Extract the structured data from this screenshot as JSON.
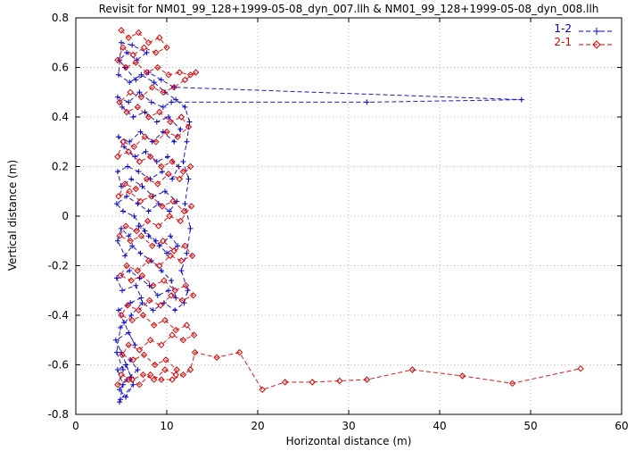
{
  "chart_data": {
    "type": "line",
    "title": "Revisit for NM01_99_128+1999-05-08_dyn_007.llh & NM01_99_128+1999-05-08_dyn_008.llh",
    "xlabel": "Horizontal distance (m)",
    "ylabel": "Vertical distance (m)",
    "xlim": [
      0,
      60
    ],
    "ylim": [
      -0.8,
      0.8
    ],
    "xticks": [
      0,
      10,
      20,
      30,
      40,
      50,
      60
    ],
    "yticks": [
      -0.8,
      -0.6,
      -0.4,
      -0.2,
      0,
      0.2,
      0.4,
      0.6,
      0.8
    ],
    "grid": true,
    "legend_position": "top-right",
    "background": "#ffffff",
    "grid_color": "#b8b8b8",
    "axis_color": "#000000",
    "series": [
      {
        "name": "1-2",
        "color": "#0000cc",
        "marker": "plus",
        "line": "dashed",
        "points": [
          [
            4.8,
            -0.75
          ],
          [
            5.2,
            -0.68
          ],
          [
            4.6,
            -0.62
          ],
          [
            5.5,
            -0.6
          ],
          [
            6.1,
            -0.65
          ],
          [
            5,
            -0.55
          ],
          [
            4.4,
            -0.5
          ],
          [
            5.8,
            -0.47
          ],
          [
            6.5,
            -0.52
          ],
          [
            5.3,
            -0.43
          ],
          [
            4.7,
            -0.38
          ],
          [
            6,
            -0.35
          ],
          [
            7.2,
            -0.33
          ],
          [
            6.6,
            -0.28
          ],
          [
            5.1,
            -0.3
          ],
          [
            4.5,
            -0.25
          ],
          [
            5.9,
            -0.22
          ],
          [
            7,
            -0.25
          ],
          [
            8.1,
            -0.28
          ],
          [
            9,
            -0.32
          ],
          [
            10.2,
            -0.3
          ],
          [
            11,
            -0.33
          ],
          [
            10.5,
            -0.26
          ],
          [
            9.4,
            -0.22
          ],
          [
            8.3,
            -0.18
          ],
          [
            7.1,
            -0.15
          ],
          [
            6.2,
            -0.12
          ],
          [
            5.4,
            -0.16
          ],
          [
            4.6,
            -0.1
          ],
          [
            5,
            -0.05
          ],
          [
            5.8,
            -0.08
          ],
          [
            6.9,
            -0.04
          ],
          [
            8,
            -0.08
          ],
          [
            9.2,
            -0.12
          ],
          [
            10.4,
            -0.08
          ],
          [
            11.2,
            -0.12
          ],
          [
            10,
            -0.15
          ],
          [
            8.8,
            -0.1
          ],
          [
            7.6,
            -0.06
          ],
          [
            6.4,
            0
          ],
          [
            5.2,
            0.02
          ],
          [
            4.5,
            0.05
          ],
          [
            5.6,
            0.08
          ],
          [
            6.8,
            0.05
          ],
          [
            8,
            0.02
          ],
          [
            9.1,
            0.05
          ],
          [
            10.3,
            0.02
          ],
          [
            11.1,
            0.06
          ],
          [
            9.8,
            0.1
          ],
          [
            8.5,
            0.08
          ],
          [
            7.3,
            0.12
          ],
          [
            6.1,
            0.15
          ],
          [
            5,
            0.12
          ],
          [
            4.6,
            0.18
          ],
          [
            5.7,
            0.2
          ],
          [
            6.9,
            0.18
          ],
          [
            8.2,
            0.15
          ],
          [
            9.5,
            0.18
          ],
          [
            10.6,
            0.15
          ],
          [
            11.3,
            0.2
          ],
          [
            10.1,
            0.24
          ],
          [
            8.9,
            0.22
          ],
          [
            7.7,
            0.26
          ],
          [
            6.5,
            0.24
          ],
          [
            5.3,
            0.28
          ],
          [
            4.7,
            0.32
          ],
          [
            5.9,
            0.3
          ],
          [
            7.1,
            0.34
          ],
          [
            8.4,
            0.3
          ],
          [
            9.6,
            0.34
          ],
          [
            10.8,
            0.3
          ],
          [
            11.5,
            0.35
          ],
          [
            10.2,
            0.4
          ],
          [
            8.9,
            0.38
          ],
          [
            7.6,
            0.42
          ],
          [
            6.3,
            0.4
          ],
          [
            5.1,
            0.44
          ],
          [
            4.6,
            0.48
          ],
          [
            5.8,
            0.46
          ],
          [
            7,
            0.5
          ],
          [
            8.3,
            0.46
          ],
          [
            9.6,
            0.44
          ],
          [
            10.5,
            0.46
          ],
          [
            32,
            0.46
          ],
          [
            49,
            0.47
          ],
          [
            10.8,
            0.52
          ],
          [
            9.4,
            0.55
          ],
          [
            8,
            0.58
          ],
          [
            6.6,
            0.55
          ],
          [
            5.4,
            0.6
          ],
          [
            4.8,
            0.63
          ],
          [
            5.6,
            0.66
          ],
          [
            6.7,
            0.63
          ],
          [
            7.8,
            0.66
          ],
          [
            6.2,
            0.69
          ],
          [
            5,
            0.7
          ],
          [
            4.7,
            0.57
          ],
          [
            5.9,
            0.54
          ],
          [
            7.2,
            0.57
          ],
          [
            8.6,
            0.54
          ],
          [
            9.8,
            0.5
          ],
          [
            11,
            0.47
          ],
          [
            12,
            0.44
          ],
          [
            12.5,
            0.38
          ],
          [
            12.2,
            0.3
          ],
          [
            11.8,
            0.22
          ],
          [
            12.4,
            0.15
          ],
          [
            12,
            0.05
          ],
          [
            12.6,
            -0.05
          ],
          [
            12.2,
            -0.15
          ],
          [
            11.6,
            -0.22
          ],
          [
            12.3,
            -0.3
          ],
          [
            11.9,
            -0.35
          ],
          [
            10.9,
            -0.38
          ],
          [
            9.7,
            -0.35
          ],
          [
            8.5,
            -0.38
          ],
          [
            7.3,
            -0.35
          ],
          [
            6.1,
            -0.4
          ],
          [
            4.9,
            -0.45
          ],
          [
            4.5,
            -0.55
          ],
          [
            5.2,
            -0.62
          ],
          [
            6,
            -0.58
          ],
          [
            6.8,
            -0.62
          ],
          [
            5.6,
            -0.66
          ],
          [
            4.8,
            -0.7
          ],
          [
            5.5,
            -0.73
          ],
          [
            6.3,
            -0.68
          ],
          [
            4.9,
            -0.74
          ]
        ]
      },
      {
        "name": "2-1",
        "color": "#dd0000",
        "marker": "diamond",
        "line": "dashed",
        "points": [
          [
            5,
            0.75
          ],
          [
            5.8,
            0.72
          ],
          [
            6.9,
            0.74
          ],
          [
            8,
            0.7
          ],
          [
            9.2,
            0.72
          ],
          [
            10,
            0.68
          ],
          [
            8.8,
            0.66
          ],
          [
            7.5,
            0.68
          ],
          [
            6.3,
            0.65
          ],
          [
            5.2,
            0.68
          ],
          [
            4.6,
            0.63
          ],
          [
            5.5,
            0.6
          ],
          [
            6.6,
            0.62
          ],
          [
            7.8,
            0.58
          ],
          [
            9,
            0.6
          ],
          [
            10.2,
            0.57
          ],
          [
            11.4,
            0.58
          ],
          [
            12.6,
            0.57
          ],
          [
            13.2,
            0.58
          ],
          [
            12,
            0.55
          ],
          [
            10.8,
            0.52
          ],
          [
            9.6,
            0.5
          ],
          [
            8.4,
            0.52
          ],
          [
            7.2,
            0.48
          ],
          [
            6,
            0.5
          ],
          [
            4.8,
            0.46
          ],
          [
            5.6,
            0.42
          ],
          [
            6.8,
            0.44
          ],
          [
            8,
            0.4
          ],
          [
            9.2,
            0.42
          ],
          [
            10.4,
            0.38
          ],
          [
            11.6,
            0.4
          ],
          [
            12.4,
            0.36
          ],
          [
            11.2,
            0.32
          ],
          [
            10,
            0.34
          ],
          [
            8.8,
            0.3
          ],
          [
            7.6,
            0.32
          ],
          [
            6.4,
            0.28
          ],
          [
            5.2,
            0.3
          ],
          [
            4.6,
            0.24
          ],
          [
            5.8,
            0.26
          ],
          [
            7,
            0.22
          ],
          [
            8.2,
            0.24
          ],
          [
            9.4,
            0.2
          ],
          [
            10.6,
            0.22
          ],
          [
            11.8,
            0.18
          ],
          [
            12.6,
            0.2
          ],
          [
            11.4,
            0.15
          ],
          [
            10.2,
            0.17
          ],
          [
            9,
            0.13
          ],
          [
            7.8,
            0.15
          ],
          [
            6.6,
            0.11
          ],
          [
            5.4,
            0.13
          ],
          [
            4.7,
            0.08
          ],
          [
            5.9,
            0.1
          ],
          [
            7.1,
            0.06
          ],
          [
            8.3,
            0.08
          ],
          [
            9.5,
            0.04
          ],
          [
            10.7,
            0.06
          ],
          [
            11.9,
            0.02
          ],
          [
            12.7,
            0.04
          ],
          [
            11.5,
            -0.02
          ],
          [
            10.3,
            0
          ],
          [
            9.1,
            -0.04
          ],
          [
            7.9,
            -0.02
          ],
          [
            6.7,
            -0.06
          ],
          [
            5.5,
            -0.04
          ],
          [
            4.8,
            -0.08
          ],
          [
            6,
            -0.1
          ],
          [
            7.2,
            -0.08
          ],
          [
            8.4,
            -0.12
          ],
          [
            9.6,
            -0.1
          ],
          [
            10.8,
            -0.14
          ],
          [
            12,
            -0.12
          ],
          [
            12.8,
            -0.16
          ],
          [
            11.6,
            -0.18
          ],
          [
            10.4,
            -0.16
          ],
          [
            9.2,
            -0.2
          ],
          [
            8,
            -0.18
          ],
          [
            6.8,
            -0.22
          ],
          [
            5.6,
            -0.2
          ],
          [
            4.9,
            -0.24
          ],
          [
            6.1,
            -0.26
          ],
          [
            7.3,
            -0.24
          ],
          [
            8.5,
            -0.28
          ],
          [
            9.7,
            -0.26
          ],
          [
            10.9,
            -0.3
          ],
          [
            12.1,
            -0.28
          ],
          [
            12.9,
            -0.32
          ],
          [
            11.7,
            -0.34
          ],
          [
            10.5,
            -0.32
          ],
          [
            9.3,
            -0.36
          ],
          [
            8.1,
            -0.34
          ],
          [
            6.9,
            -0.38
          ],
          [
            5.7,
            -0.36
          ],
          [
            5,
            -0.4
          ],
          [
            6.2,
            -0.42
          ],
          [
            7.4,
            -0.4
          ],
          [
            8.6,
            -0.44
          ],
          [
            9.8,
            -0.42
          ],
          [
            11,
            -0.46
          ],
          [
            12.2,
            -0.44
          ],
          [
            13,
            -0.48
          ],
          [
            11.8,
            -0.5
          ],
          [
            10.6,
            -0.48
          ],
          [
            9.4,
            -0.52
          ],
          [
            8.2,
            -0.5
          ],
          [
            7,
            -0.54
          ],
          [
            5.8,
            -0.52
          ],
          [
            5.1,
            -0.56
          ],
          [
            6.3,
            -0.58
          ],
          [
            7.5,
            -0.56
          ],
          [
            8.7,
            -0.6
          ],
          [
            9.9,
            -0.58
          ],
          [
            11.1,
            -0.62
          ],
          [
            11,
            -0.64
          ],
          [
            9.8,
            -0.62
          ],
          [
            8.6,
            -0.66
          ],
          [
            7.4,
            -0.64
          ],
          [
            6.2,
            -0.66
          ],
          [
            5,
            -0.64
          ],
          [
            4.6,
            -0.68
          ],
          [
            5.8,
            -0.66
          ],
          [
            7,
            -0.68
          ],
          [
            8.2,
            -0.64
          ],
          [
            9.4,
            -0.66
          ],
          [
            10.6,
            -0.66
          ],
          [
            11.8,
            -0.64
          ],
          [
            12.6,
            -0.62
          ],
          [
            13.1,
            -0.55
          ],
          [
            15.5,
            -0.57
          ],
          [
            18,
            -0.55
          ],
          [
            20.5,
            -0.7
          ],
          [
            23,
            -0.67
          ],
          [
            26,
            -0.67
          ],
          [
            29,
            -0.665
          ],
          [
            32,
            -0.66
          ],
          [
            37,
            -0.62
          ],
          [
            42.5,
            -0.645
          ],
          [
            48,
            -0.675
          ],
          [
            55.5,
            -0.615
          ]
        ]
      }
    ]
  }
}
